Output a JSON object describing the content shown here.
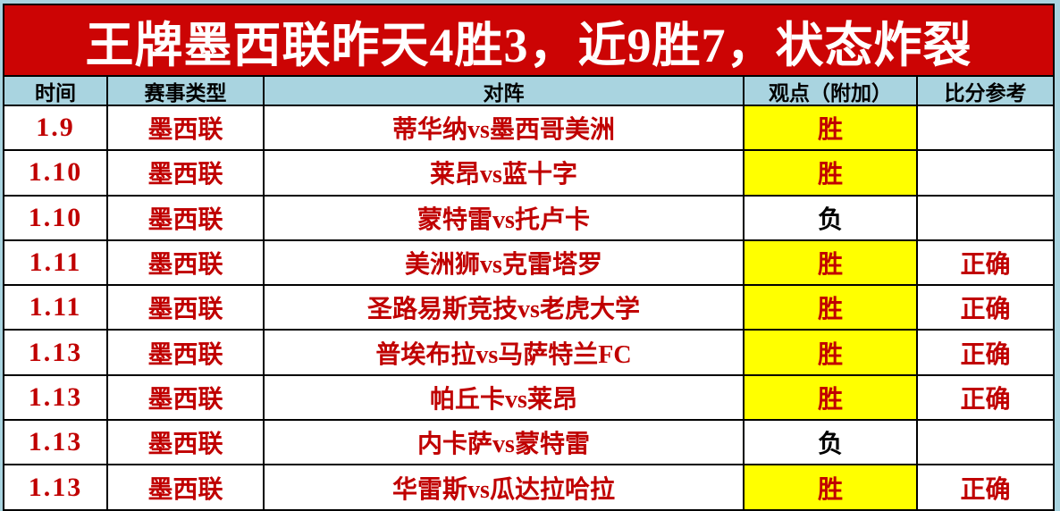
{
  "title": "王牌墨西联昨天4胜3，近9胜7，状态炸裂",
  "colors": {
    "banner_bg": "#cc0404",
    "banner_text": "#ffffff",
    "header_bg": "#a9d4e0",
    "sheet_bg": "#a9d4e0",
    "accent_red_text": "#c00000",
    "pick_highlight_bg": "#ffff00",
    "grid_border": "#000000",
    "cell_bg": "#ffffff"
  },
  "table": {
    "headers": {
      "time": "时间",
      "league": "赛事类型",
      "match": "对阵",
      "pick": "观点（附加）",
      "score_ref": "比分参考"
    },
    "rows": [
      {
        "date": "1.9",
        "league": "墨西联",
        "match": "蒂华纳vs墨西哥美洲",
        "pick": "胜",
        "pick_highlight": true,
        "result": ""
      },
      {
        "date": "1.10",
        "league": "墨西联",
        "match": "莱昂vs蓝十字",
        "pick": "胜",
        "pick_highlight": true,
        "result": ""
      },
      {
        "date": "1.10",
        "league": "墨西联",
        "match": "蒙特雷vs托卢卡",
        "pick": "负",
        "pick_highlight": false,
        "result": ""
      },
      {
        "date": "1.11",
        "league": "墨西联",
        "match": "美洲狮vs克雷塔罗",
        "pick": "胜",
        "pick_highlight": true,
        "result": "正确"
      },
      {
        "date": "1.11",
        "league": "墨西联",
        "match": "圣路易斯竞技vs老虎大学",
        "pick": "胜",
        "pick_highlight": true,
        "result": "正确"
      },
      {
        "date": "1.13",
        "league": "墨西联",
        "match": "普埃布拉vs马萨特兰FC",
        "pick": "胜",
        "pick_highlight": true,
        "result": "正确"
      },
      {
        "date": "1.13",
        "league": "墨西联",
        "match": "帕丘卡vs莱昂",
        "pick": "胜",
        "pick_highlight": true,
        "result": "正确"
      },
      {
        "date": "1.13",
        "league": "墨西联",
        "match": "内卡萨vs蒙特雷",
        "pick": "负",
        "pick_highlight": false,
        "result": ""
      },
      {
        "date": "1.13",
        "league": "墨西联",
        "match": "华雷斯vs瓜达拉哈拉",
        "pick": "胜",
        "pick_highlight": true,
        "result": "正确"
      }
    ]
  }
}
